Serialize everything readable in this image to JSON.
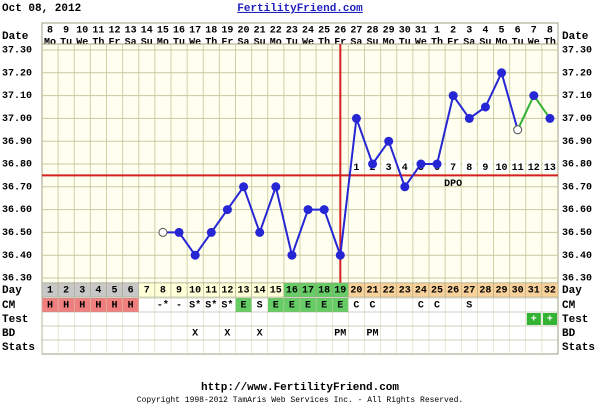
{
  "chart_data": {
    "type": "line",
    "date": "Oct 08, 2012",
    "title": "FertilityFriend.com",
    "x": [
      1,
      2,
      3,
      4,
      5,
      6,
      7,
      8,
      9,
      10,
      11,
      12,
      13,
      14,
      15,
      16,
      17,
      18,
      19,
      20,
      21,
      22,
      23,
      24,
      25,
      26,
      27,
      28,
      29,
      30,
      31,
      32
    ],
    "dates": [
      8,
      9,
      10,
      11,
      12,
      13,
      14,
      15,
      16,
      17,
      18,
      19,
      20,
      21,
      22,
      23,
      24,
      25,
      26,
      27,
      28,
      29,
      30,
      31,
      1,
      2,
      3,
      4,
      5,
      6,
      7,
      8
    ],
    "weekdays": [
      "Mo",
      "Tu",
      "We",
      "Th",
      "Fr",
      "Sa",
      "Su",
      "Mo",
      "Tu",
      "We",
      "Th",
      "Fr",
      "Sa",
      "Su",
      "Mo",
      "Tu",
      "We",
      "Th",
      "Fr",
      "Sa",
      "Su",
      "Mo",
      "Tu",
      "We",
      "Th",
      "Fr",
      "Sa",
      "Su",
      "Mo",
      "Tu",
      "We",
      "Th"
    ],
    "values": [
      null,
      null,
      null,
      null,
      null,
      null,
      null,
      36.5,
      36.5,
      36.4,
      36.5,
      36.6,
      36.7,
      36.5,
      36.7,
      36.4,
      36.6,
      36.6,
      36.4,
      37.0,
      36.8,
      36.9,
      36.7,
      36.8,
      36.8,
      37.1,
      37.0,
      37.05,
      37.2,
      36.95,
      37.1,
      37.0
    ],
    "color": "#2626d4",
    "alt_color": "#33b233",
    "alt_from_day": 30,
    "hollow_days": [
      8,
      30
    ],
    "ylim": [
      36.3,
      37.3
    ],
    "yticks": [
      {
        "value": 36.3,
        "label": "36.30"
      },
      {
        "value": 36.4,
        "label": "36.40"
      },
      {
        "value": 36.5,
        "label": "36.50"
      },
      {
        "value": 36.6,
        "label": "36.60"
      },
      {
        "value": 36.7,
        "label": "36.70"
      },
      {
        "value": 36.8,
        "label": "36.80"
      },
      {
        "value": 36.9,
        "label": "36.90"
      },
      {
        "value": 37.0,
        "label": "37.00"
      },
      {
        "value": 37.1,
        "label": "37.10"
      },
      {
        "value": 37.2,
        "label": "37.20"
      },
      {
        "value": 37.3,
        "label": "37.30"
      }
    ],
    "grid": true,
    "coverline": 36.75,
    "ovulation_day": 19,
    "dpo": [
      null,
      null,
      null,
      null,
      null,
      null,
      null,
      null,
      null,
      null,
      null,
      null,
      null,
      null,
      null,
      null,
      null,
      null,
      null,
      1,
      2,
      3,
      4,
      5,
      6,
      7,
      8,
      9,
      10,
      11,
      12,
      13
    ],
    "dpo_label": "DPO",
    "day_colors": [
      "#c8c8c8",
      "#c8c8c8",
      "#c8c8c8",
      "#c8c8c8",
      "#c8c8c8",
      "#c8c8c8",
      "#ffffd8",
      "#ffffd8",
      "#ffffd8",
      "#ffffd8",
      "#ffffd8",
      "#ffffd8",
      "#ffffd8",
      "#ffffd8",
      "#ffffd8",
      "#66cc66",
      "#66cc66",
      "#66cc66",
      "#66cc66",
      "#f8d29a",
      "#f8d29a",
      "#f8d29a",
      "#f8d29a",
      "#f8d29a",
      "#f8d29a",
      "#f8d29a",
      "#f8d29a",
      "#f8d29a",
      "#f8d29a",
      "#f8d29a",
      "#f8d29a",
      "#f8d29a"
    ],
    "cm": [
      "H",
      "H",
      "H",
      "H",
      "H",
      "H",
      null,
      "-*",
      "-",
      "S*",
      "S*",
      "S*",
      "E",
      "S",
      "E",
      "E",
      "E",
      "E",
      "E",
      "C",
      "C",
      null,
      null,
      "C",
      "C",
      null,
      "S",
      null,
      null,
      null,
      null,
      null
    ],
    "cm_colors": [
      "#f08080",
      "#f08080",
      "#f08080",
      "#f08080",
      "#f08080",
      "#f08080",
      null,
      null,
      null,
      null,
      null,
      null,
      "#66cc66",
      null,
      "#66cc66",
      "#66cc66",
      "#66cc66",
      "#66cc66",
      "#66cc66",
      null,
      null,
      null,
      null,
      null,
      null,
      null,
      null,
      null,
      null,
      null,
      null,
      null
    ],
    "test": [
      null,
      null,
      null,
      null,
      null,
      null,
      null,
      null,
      null,
      null,
      null,
      null,
      null,
      null,
      null,
      null,
      null,
      null,
      null,
      null,
      null,
      null,
      null,
      null,
      null,
      null,
      null,
      null,
      null,
      null,
      "+",
      "+"
    ],
    "test_color": "#33b233",
    "bd": [
      null,
      null,
      null,
      null,
      null,
      null,
      null,
      null,
      null,
      "X",
      null,
      "X",
      null,
      "X",
      null,
      null,
      null,
      null,
      "PM",
      null,
      "PM",
      null,
      null,
      null,
      null,
      null,
      null,
      null,
      null,
      null,
      null,
      null
    ],
    "row_labels": {
      "date": "Date",
      "day": "Day",
      "cm": "CM",
      "test": "Test",
      "bd": "BD",
      "stats": "Stats"
    },
    "footer_url": "http://www.FertilityFriend.com",
    "copyright": "Copyright 1998-2012 TamAris Web Services Inc. - All Rights Reserved."
  }
}
